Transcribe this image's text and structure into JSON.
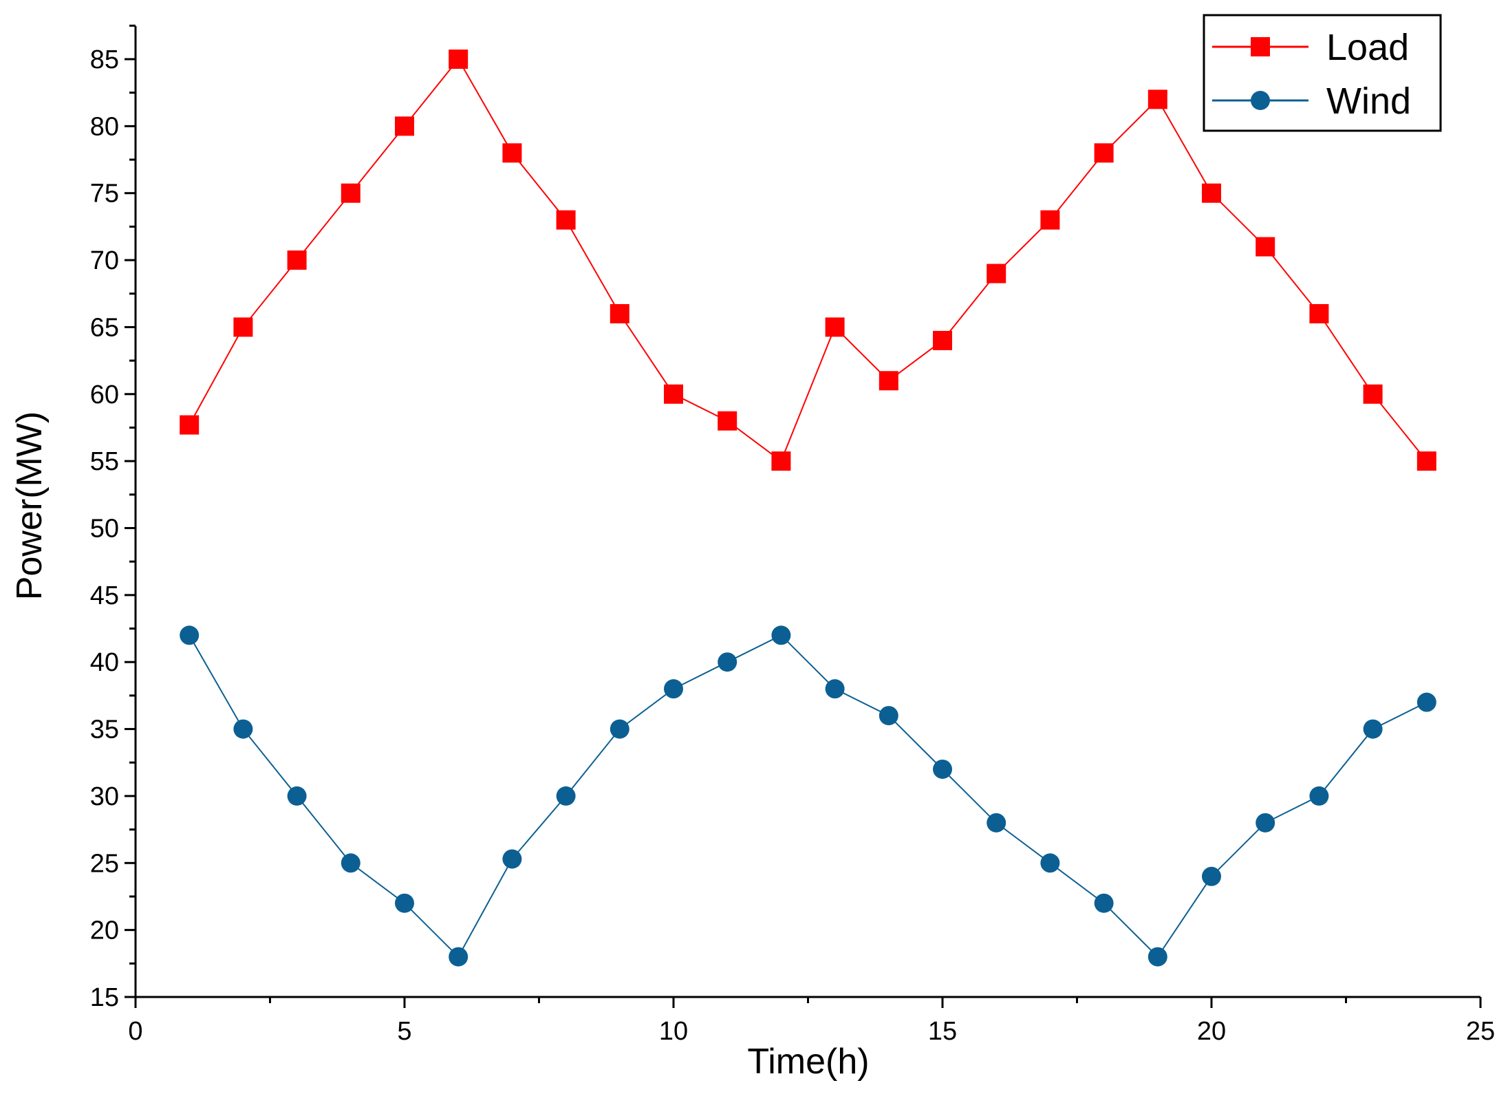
{
  "chart_data": {
    "type": "line",
    "title": "",
    "xlabel": "Time(h)",
    "ylabel": "Power(MW)",
    "xlim": [
      0,
      25
    ],
    "ylim": [
      15,
      88
    ],
    "xticks": [
      0,
      5,
      10,
      15,
      20,
      25
    ],
    "yticks": [
      15,
      20,
      25,
      30,
      35,
      40,
      45,
      50,
      55,
      60,
      65,
      70,
      75,
      80,
      85
    ],
    "grid": false,
    "legend_position": "top-right",
    "x": [
      1,
      2,
      3,
      4,
      5,
      6,
      7,
      8,
      9,
      10,
      11,
      12,
      13,
      14,
      15,
      16,
      17,
      18,
      19,
      20,
      21,
      22,
      23,
      24
    ],
    "series": [
      {
        "name": "Load",
        "color": "#ff0000",
        "marker": "square",
        "values": [
          57.7,
          65,
          70,
          75,
          80,
          85,
          78,
          73,
          66,
          60,
          58,
          55,
          65,
          61,
          64,
          69,
          73,
          78,
          82,
          75,
          71,
          66,
          60,
          55
        ]
      },
      {
        "name": "Wind",
        "color": "#0c5f93",
        "marker": "circle",
        "values": [
          42,
          35,
          30,
          25,
          22,
          18,
          25.3,
          30,
          35,
          38,
          40,
          42,
          38,
          36,
          32,
          28,
          25,
          22,
          18,
          24,
          28,
          30,
          35,
          37
        ]
      }
    ]
  }
}
